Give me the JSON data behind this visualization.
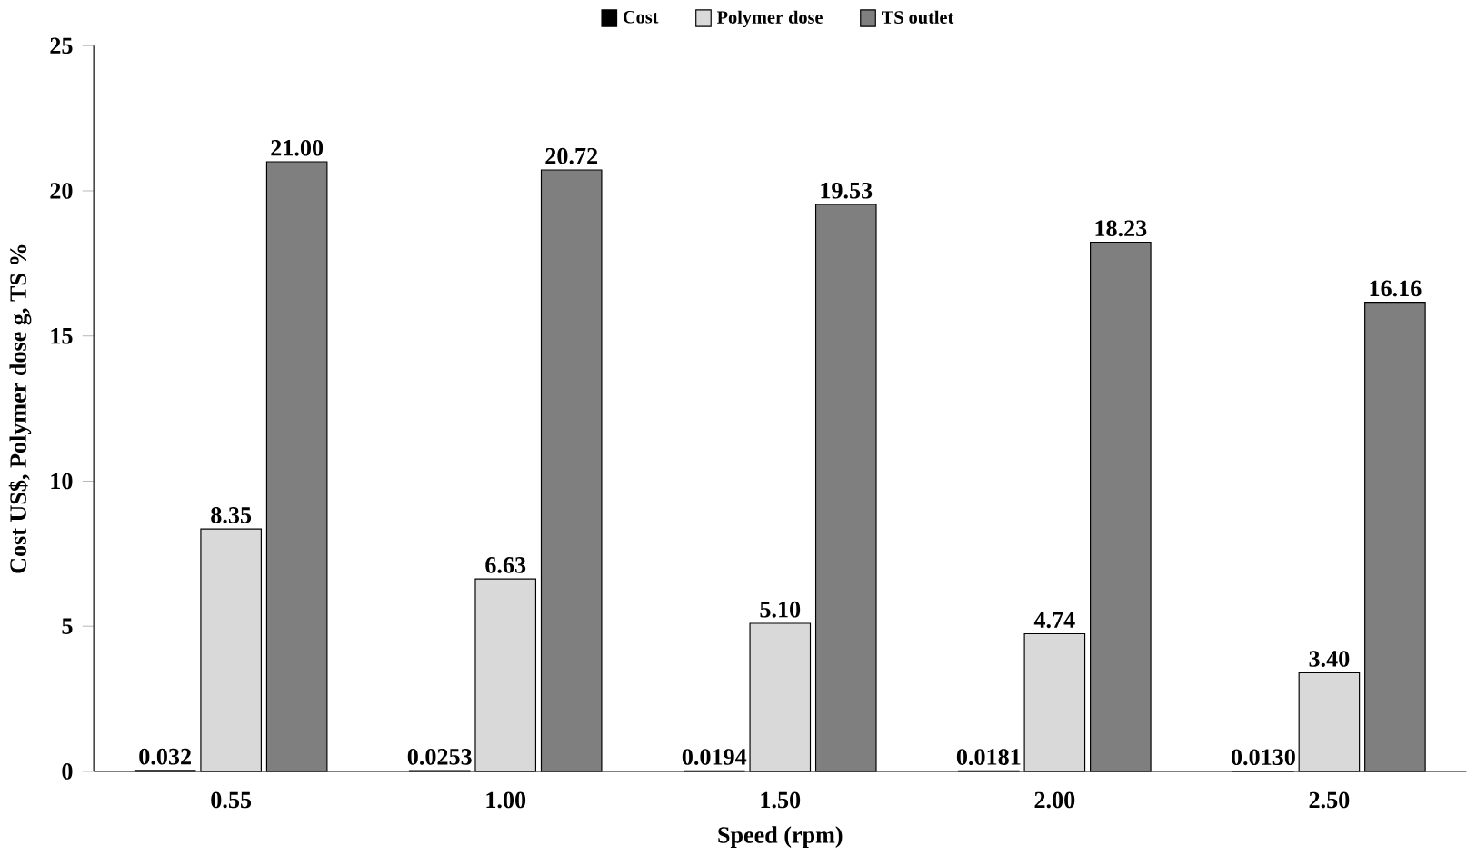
{
  "chart_data": {
    "type": "bar",
    "categories": [
      "0.55",
      "1.00",
      "1.50",
      "2.00",
      "2.50"
    ],
    "xlabel": "Speed (rpm)",
    "ylabel": "Cost US$, Polymer dose g, TS %",
    "ylim": [
      0,
      25
    ],
    "yticks": [
      0,
      5,
      10,
      15,
      20,
      25
    ],
    "legend": "top",
    "series": [
      {
        "name": "Cost",
        "color": "#000000",
        "values": [
          0.032,
          0.0253,
          0.0194,
          0.0181,
          0.013
        ],
        "value_labels": [
          "0.032",
          "0.0253",
          "0.0194",
          "0.0181",
          "0.0130"
        ]
      },
      {
        "name": "Polymer dose",
        "color": "#d9d9d9",
        "values": [
          8.35,
          6.63,
          5.1,
          4.74,
          3.4
        ],
        "value_labels": [
          "8.35",
          "6.63",
          "5.10",
          "4.74",
          "3.40"
        ]
      },
      {
        "name": "TS outlet",
        "color": "#7f7f7f",
        "values": [
          21.0,
          20.72,
          19.53,
          18.23,
          16.16
        ],
        "value_labels": [
          "21.00",
          "20.72",
          "19.53",
          "18.23",
          "16.16"
        ]
      }
    ]
  }
}
